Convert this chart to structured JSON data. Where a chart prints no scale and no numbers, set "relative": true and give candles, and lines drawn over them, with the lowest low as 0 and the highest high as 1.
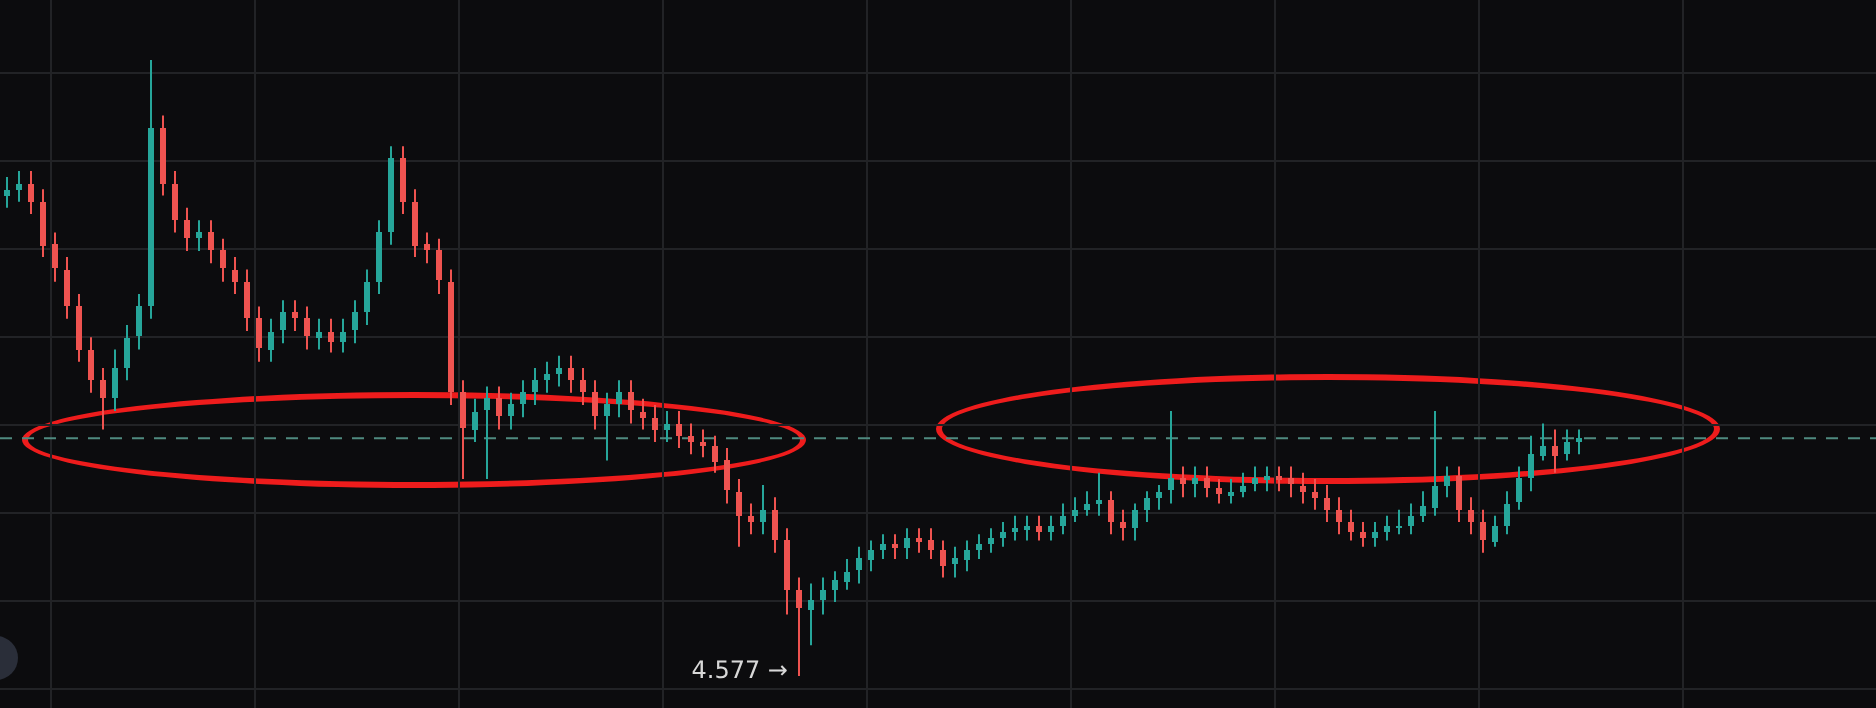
{
  "chart_data": {
    "type": "candlestick",
    "relative": true,
    "grid": true,
    "categories": [
      null,
      null,
      null,
      null,
      null,
      null,
      null,
      null,
      null,
      null,
      null,
      null,
      null,
      null,
      null,
      null,
      null,
      null,
      null,
      null,
      null,
      null,
      null,
      null,
      null,
      null,
      null,
      null,
      null,
      null,
      null,
      null,
      null,
      null,
      null,
      null,
      null,
      null,
      null,
      null,
      null,
      null,
      null,
      null,
      null,
      null,
      null,
      null,
      null,
      null,
      null,
      null,
      null,
      null,
      null,
      null,
      null,
      null,
      null,
      null,
      null,
      null,
      null,
      null,
      null,
      null,
      null,
      null,
      null,
      null,
      null,
      null,
      null,
      null,
      null,
      null,
      null,
      null,
      null,
      null,
      null,
      null,
      null,
      null,
      null,
      null,
      null,
      null,
      null,
      null,
      null,
      null,
      null,
      null,
      null,
      null,
      null,
      null,
      null,
      null,
      null,
      null,
      null,
      null,
      null,
      null,
      null,
      null,
      null,
      null,
      null,
      null,
      null,
      null,
      null,
      null,
      null,
      null,
      null,
      null,
      null,
      null,
      null,
      null,
      null,
      null,
      null,
      null,
      null,
      null,
      null,
      null
    ],
    "ohlc": [
      [
        0.78,
        0.81,
        0.76,
        0.79
      ],
      [
        0.79,
        0.82,
        0.77,
        0.8
      ],
      [
        0.8,
        0.82,
        0.75,
        0.77
      ],
      [
        0.77,
        0.79,
        0.68,
        0.7
      ],
      [
        0.7,
        0.72,
        0.64,
        0.66
      ],
      [
        0.66,
        0.68,
        0.58,
        0.6
      ],
      [
        0.6,
        0.62,
        0.51,
        0.53
      ],
      [
        0.53,
        0.55,
        0.46,
        0.48
      ],
      [
        0.48,
        0.5,
        0.4,
        0.45
      ],
      [
        0.45,
        0.53,
        0.43,
        0.5
      ],
      [
        0.5,
        0.57,
        0.48,
        0.55
      ],
      [
        0.55,
        0.62,
        0.53,
        0.6
      ],
      [
        0.6,
        1,
        0.58,
        0.89
      ],
      [
        0.89,
        0.91,
        0.78,
        0.8
      ],
      [
        0.8,
        0.82,
        0.72,
        0.74
      ],
      [
        0.74,
        0.76,
        0.69,
        0.71
      ],
      [
        0.71,
        0.74,
        0.69,
        0.72
      ],
      [
        0.72,
        0.74,
        0.67,
        0.69
      ],
      [
        0.69,
        0.71,
        0.64,
        0.66
      ],
      [
        0.66,
        0.68,
        0.62,
        0.64
      ],
      [
        0.64,
        0.66,
        0.56,
        0.58
      ],
      [
        0.58,
        0.6,
        0.51,
        0.53
      ],
      [
        0.53,
        0.58,
        0.51,
        0.56
      ],
      [
        0.56,
        0.61,
        0.54,
        0.59
      ],
      [
        0.59,
        0.61,
        0.56,
        0.58
      ],
      [
        0.58,
        0.6,
        0.53,
        0.55
      ],
      [
        0.55,
        0.58,
        0.53,
        0.56
      ],
      [
        0.56,
        0.58,
        0.525,
        0.545
      ],
      [
        0.545,
        0.58,
        0.525,
        0.56
      ],
      [
        0.56,
        0.61,
        0.54,
        0.59
      ],
      [
        0.59,
        0.66,
        0.57,
        0.64
      ],
      [
        0.64,
        0.74,
        0.62,
        0.72
      ],
      [
        0.72,
        0.86,
        0.7,
        0.84
      ],
      [
        0.84,
        0.86,
        0.75,
        0.77
      ],
      [
        0.77,
        0.79,
        0.68,
        0.7
      ],
      [
        0.7,
        0.72,
        0.67,
        0.69
      ],
      [
        0.69,
        0.71,
        0.62,
        0.64
      ],
      [
        0.64,
        0.66,
        0.44,
        0.46
      ],
      [
        0.46,
        0.48,
        0.32,
        0.4
      ],
      [
        0.4,
        0.45,
        0.38,
        0.43
      ],
      [
        0.43,
        0.47,
        0.32,
        0.45
      ],
      [
        0.45,
        0.47,
        0.4,
        0.42
      ],
      [
        0.42,
        0.46,
        0.4,
        0.44
      ],
      [
        0.44,
        0.48,
        0.42,
        0.46
      ],
      [
        0.46,
        0.5,
        0.44,
        0.48
      ],
      [
        0.48,
        0.51,
        0.46,
        0.49
      ],
      [
        0.49,
        0.52,
        0.47,
        0.5
      ],
      [
        0.5,
        0.52,
        0.46,
        0.48
      ],
      [
        0.48,
        0.5,
        0.44,
        0.46
      ],
      [
        0.46,
        0.48,
        0.4,
        0.42
      ],
      [
        0.42,
        0.46,
        0.35,
        0.44
      ],
      [
        0.44,
        0.48,
        0.42,
        0.46
      ],
      [
        0.46,
        0.48,
        0.41,
        0.43
      ],
      [
        0.43,
        0.45,
        0.4,
        0.42
      ],
      [
        0.42,
        0.44,
        0.38,
        0.4
      ],
      [
        0.4,
        0.43,
        0.38,
        0.41
      ],
      [
        0.41,
        0.43,
        0.37,
        0.39
      ],
      [
        0.39,
        0.41,
        0.36,
        0.38
      ],
      [
        0.38,
        0.4,
        0.355,
        0.375
      ],
      [
        0.375,
        0.39,
        0.33,
        0.35
      ],
      [
        0.35,
        0.37,
        0.28,
        0.3
      ],
      [
        0.3,
        0.32,
        0.21,
        0.26
      ],
      [
        0.26,
        0.28,
        0.23,
        0.25
      ],
      [
        0.25,
        0.31,
        0.23,
        0.27
      ],
      [
        0.27,
        0.29,
        0.2,
        0.22
      ],
      [
        0.22,
        0.24,
        0.1,
        0.14
      ],
      [
        0.14,
        0.16,
        0,
        0.11
      ],
      [
        0.11,
        0.15,
        0.05,
        0.125
      ],
      [
        0.125,
        0.16,
        0.1,
        0.14
      ],
      [
        0.14,
        0.17,
        0.12,
        0.155
      ],
      [
        0.155,
        0.19,
        0.14,
        0.17
      ],
      [
        0.17,
        0.21,
        0.15,
        0.19
      ],
      [
        0.19,
        0.22,
        0.17,
        0.205
      ],
      [
        0.205,
        0.23,
        0.19,
        0.215
      ],
      [
        0.215,
        0.23,
        0.19,
        0.21
      ],
      [
        0.21,
        0.24,
        0.19,
        0.225
      ],
      [
        0.225,
        0.24,
        0.2,
        0.22
      ],
      [
        0.22,
        0.24,
        0.19,
        0.205
      ],
      [
        0.205,
        0.22,
        0.16,
        0.18
      ],
      [
        0.18,
        0.21,
        0.16,
        0.19
      ],
      [
        0.19,
        0.22,
        0.17,
        0.205
      ],
      [
        0.205,
        0.23,
        0.19,
        0.215
      ],
      [
        0.215,
        0.24,
        0.2,
        0.225
      ],
      [
        0.225,
        0.25,
        0.21,
        0.235
      ],
      [
        0.235,
        0.26,
        0.22,
        0.24
      ],
      [
        0.24,
        0.26,
        0.22,
        0.245
      ],
      [
        0.245,
        0.26,
        0.22,
        0.235
      ],
      [
        0.235,
        0.26,
        0.22,
        0.245
      ],
      [
        0.245,
        0.28,
        0.23,
        0.26
      ],
      [
        0.26,
        0.29,
        0.25,
        0.27
      ],
      [
        0.27,
        0.3,
        0.26,
        0.28
      ],
      [
        0.28,
        0.33,
        0.26,
        0.285
      ],
      [
        0.285,
        0.3,
        0.23,
        0.25
      ],
      [
        0.25,
        0.27,
        0.22,
        0.24
      ],
      [
        0.24,
        0.28,
        0.22,
        0.27
      ],
      [
        0.27,
        0.3,
        0.25,
        0.29
      ],
      [
        0.29,
        0.31,
        0.27,
        0.3
      ],
      [
        0.3,
        0.43,
        0.28,
        0.32
      ],
      [
        0.32,
        0.34,
        0.29,
        0.31
      ],
      [
        0.31,
        0.34,
        0.29,
        0.32
      ],
      [
        0.32,
        0.34,
        0.29,
        0.305
      ],
      [
        0.305,
        0.32,
        0.28,
        0.295
      ],
      [
        0.295,
        0.32,
        0.28,
        0.3
      ],
      [
        0.3,
        0.33,
        0.29,
        0.31
      ],
      [
        0.31,
        0.34,
        0.3,
        0.32
      ],
      [
        0.32,
        0.34,
        0.3,
        0.325
      ],
      [
        0.325,
        0.34,
        0.3,
        0.32
      ],
      [
        0.32,
        0.34,
        0.29,
        0.31
      ],
      [
        0.31,
        0.33,
        0.28,
        0.3
      ],
      [
        0.3,
        0.32,
        0.27,
        0.29
      ],
      [
        0.29,
        0.31,
        0.25,
        0.27
      ],
      [
        0.27,
        0.29,
        0.23,
        0.25
      ],
      [
        0.25,
        0.27,
        0.22,
        0.235
      ],
      [
        0.235,
        0.25,
        0.21,
        0.225
      ],
      [
        0.225,
        0.25,
        0.21,
        0.235
      ],
      [
        0.235,
        0.26,
        0.22,
        0.245
      ],
      [
        0.245,
        0.27,
        0.23,
        0.245
      ],
      [
        0.245,
        0.28,
        0.23,
        0.26
      ],
      [
        0.26,
        0.3,
        0.25,
        0.275
      ],
      [
        0.275,
        0.43,
        0.26,
        0.31
      ],
      [
        0.31,
        0.34,
        0.29,
        0.325
      ],
      [
        0.325,
        0.34,
        0.25,
        0.27
      ],
      [
        0.27,
        0.29,
        0.23,
        0.25
      ],
      [
        0.25,
        0.27,
        0.2,
        0.22
      ],
      [
        0.22,
        0.26,
        0.21,
        0.245
      ],
      [
        0.245,
        0.3,
        0.23,
        0.28
      ],
      [
        0.28,
        0.34,
        0.27,
        0.32
      ],
      [
        0.32,
        0.39,
        0.3,
        0.36
      ],
      [
        0.36,
        0.41,
        0.35,
        0.375
      ],
      [
        0.375,
        0.4,
        0.33,
        0.36
      ],
      [
        0.36,
        0.4,
        0.35,
        0.38
      ],
      [
        0.38,
        0.4,
        0.36,
        0.385
      ]
    ],
    "colors": [
      "#26a69a",
      "#26a69a",
      "#ef5350",
      "#ef5350",
      "#ef5350",
      "#ef5350",
      "#ef5350",
      "#ef5350",
      "#ef5350",
      "#26a69a",
      "#26a69a",
      "#26a69a",
      "#26a69a",
      "#ef5350",
      "#ef5350",
      "#ef5350",
      "#26a69a",
      "#ef5350",
      "#ef5350",
      "#ef5350",
      "#ef5350",
      "#ef5350",
      "#26a69a",
      "#26a69a",
      "#ef5350",
      "#ef5350",
      "#26a69a",
      "#ef5350",
      "#26a69a",
      "#26a69a",
      "#26a69a",
      "#26a69a",
      "#26a69a",
      "#ef5350",
      "#ef5350",
      "#ef5350",
      "#ef5350",
      "#ef5350",
      "#ef5350",
      "#26a69a",
      "#26a69a",
      "#ef5350",
      "#26a69a",
      "#26a69a",
      "#26a69a",
      "#26a69a",
      "#26a69a",
      "#ef5350",
      "#ef5350",
      "#ef5350",
      "#26a69a",
      "#26a69a",
      "#ef5350",
      "#ef5350",
      "#ef5350",
      "#26a69a",
      "#ef5350",
      "#ef5350",
      "#ef5350",
      "#ef5350",
      "#ef5350",
      "#ef5350",
      "#ef5350",
      "#26a69a",
      "#ef5350",
      "#ef5350",
      "#ef5350",
      "#26a69a",
      "#26a69a",
      "#26a69a",
      "#26a69a",
      "#26a69a",
      "#26a69a",
      "#26a69a",
      "#ef5350",
      "#26a69a",
      "#ef5350",
      "#ef5350",
      "#ef5350",
      "#26a69a",
      "#26a69a",
      "#26a69a",
      "#26a69a",
      "#26a69a",
      "#26a69a",
      "#26a69a",
      "#ef5350",
      "#26a69a",
      "#26a69a",
      "#26a69a",
      "#26a69a",
      "#26a69a",
      "#ef5350",
      "#ef5350",
      "#26a69a",
      "#26a69a",
      "#26a69a",
      "#26a69a",
      "#ef5350",
      "#26a69a",
      "#ef5350",
      "#ef5350",
      "#26a69a",
      "#26a69a",
      "#26a69a",
      "#26a69a",
      "#ef5350",
      "#ef5350",
      "#ef5350",
      "#ef5350",
      "#ef5350",
      "#ef5350",
      "#ef5350",
      "#ef5350",
      "#26a69a",
      "#26a69a",
      "#26a69a",
      "#26a69a",
      "#26a69a",
      "#26a69a",
      "#26a69a",
      "#ef5350",
      "#ef5350",
      "#ef5350",
      "#26a69a",
      "#26a69a",
      "#26a69a",
      "#26a69a",
      "#26a69a",
      "#ef5350",
      "#26a69a",
      "#26a69a"
    ],
    "ref_lines": [
      {
        "axis": "y",
        "value": 0.386,
        "color": "#4f8a80",
        "line_style": "dashed"
      }
    ],
    "annotations": [
      "4.577 →"
    ]
  }
}
